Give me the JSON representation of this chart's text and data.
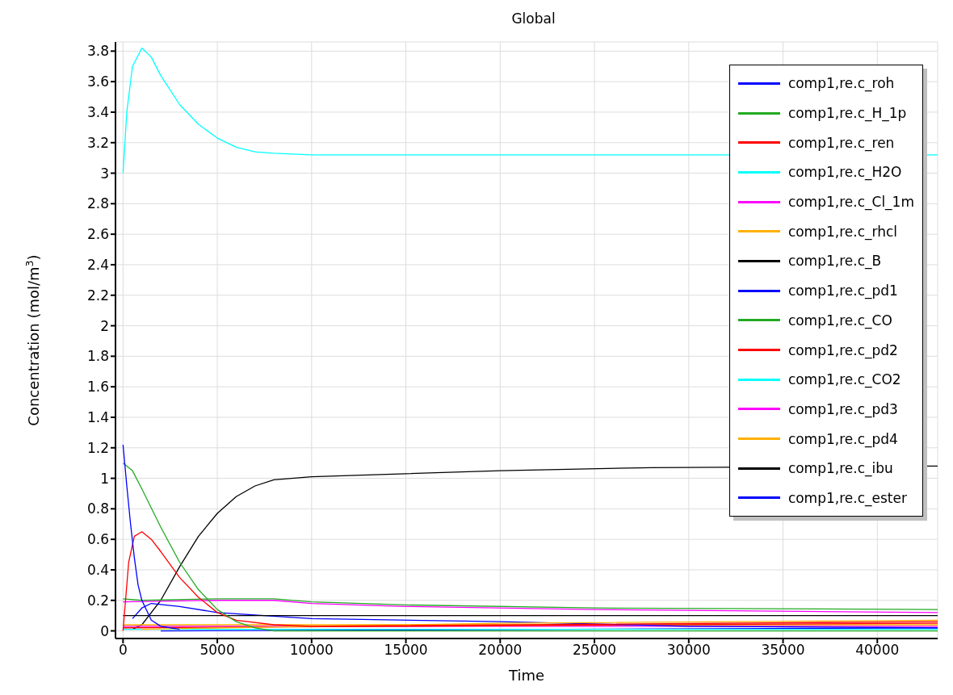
{
  "chart_data": {
    "type": "line",
    "title": "Global",
    "xlabel": "Time",
    "ylabel": "Concentration (mol/m$^{3}$)",
    "xlim": [
      -400,
      43200
    ],
    "xticks": [
      0,
      5000,
      10000,
      15000,
      20000,
      25000,
      30000,
      35000,
      40000
    ],
    "ylim": [
      -0.05,
      3.86
    ],
    "yticks": [
      0,
      0.2,
      0.4,
      0.6,
      0.8,
      1,
      1.2,
      1.4,
      1.6,
      1.8,
      2,
      2.2,
      2.4,
      2.6,
      2.8,
      3,
      3.2,
      3.4,
      3.6,
      3.8
    ],
    "grid": true,
    "legend": "top right",
    "marker": "none",
    "line_style": "solid",
    "series": [
      {
        "name": "comp1,re.c_roh",
        "color": "#0000ff",
        "x": [
          0,
          200,
          400,
          600,
          800,
          1000,
          1500,
          2000,
          3000
        ],
        "values": [
          1.22,
          0.95,
          0.7,
          0.48,
          0.3,
          0.2,
          0.07,
          0.03,
          0.01
        ]
      },
      {
        "name": "comp1,re.c_H_1p",
        "color": "#22aa22",
        "x": [
          0,
          500,
          1000,
          2000,
          3000,
          4000,
          5000,
          6000,
          7000,
          8000,
          43200
        ],
        "values": [
          1.1,
          1.05,
          0.93,
          0.68,
          0.45,
          0.27,
          0.14,
          0.06,
          0.02,
          0,
          0
        ]
      },
      {
        "name": "comp1,re.c_ren",
        "color": "#ff0000",
        "x": [
          0,
          300,
          600,
          1000,
          1500,
          2000,
          3000,
          4000,
          5000,
          6000,
          8000,
          10000,
          43200
        ],
        "values": [
          0,
          0.45,
          0.62,
          0.65,
          0.6,
          0.52,
          0.35,
          0.22,
          0.12,
          0.07,
          0.04,
          0.03,
          0.06
        ]
      },
      {
        "name": "comp1,re.c_H2O",
        "color": "#00ffff",
        "x": [
          0,
          200,
          500,
          1000,
          1500,
          2000,
          3000,
          4000,
          5000,
          6000,
          7000,
          8000,
          10000,
          28000,
          43200
        ],
        "values": [
          3.0,
          3.4,
          3.7,
          3.82,
          3.76,
          3.64,
          3.45,
          3.32,
          3.23,
          3.17,
          3.14,
          3.13,
          3.12,
          3.12,
          3.12
        ]
      },
      {
        "name": "comp1,re.c_Cl_1m",
        "color": "#ff00ff",
        "x": [
          0,
          5000,
          8000,
          10000,
          15000,
          25000,
          43200
        ],
        "values": [
          0.19,
          0.2,
          0.2,
          0.18,
          0.16,
          0.14,
          0.12
        ]
      },
      {
        "name": "comp1,re.c_rhcl",
        "color": "#ffb000",
        "x": [
          1000,
          10000,
          20000,
          43200
        ],
        "values": [
          0.01,
          0.03,
          0.05,
          0.07
        ]
      },
      {
        "name": "comp1,re.c_B",
        "color": "#000000",
        "x": [
          0,
          43200
        ],
        "values": [
          0.1,
          0.1
        ]
      },
      {
        "name": "comp1,re.c_pd1",
        "color": "#0000ff",
        "x": [
          500,
          1000,
          1500,
          3000,
          5000,
          10000,
          20000,
          30000,
          43200
        ],
        "values": [
          0.08,
          0.15,
          0.18,
          0.16,
          0.12,
          0.08,
          0.06,
          0.03,
          0.02
        ]
      },
      {
        "name": "comp1,re.c_CO",
        "color": "#22aa22",
        "x": [
          0,
          1000,
          5000,
          8000,
          10000,
          15000,
          25000,
          43200
        ],
        "values": [
          0.21,
          0.2,
          0.21,
          0.21,
          0.19,
          0.17,
          0.15,
          0.14
        ]
      },
      {
        "name": "comp1,re.c_pd2",
        "color": "#ff0000",
        "x": [
          0,
          43200
        ],
        "values": [
          0.02,
          0.05
        ]
      },
      {
        "name": "comp1,re.c_CO2",
        "color": "#00ffff",
        "x": [
          0,
          43200
        ],
        "values": [
          0.01,
          0.01
        ]
      },
      {
        "name": "comp1,re.c_pd3",
        "color": "#ff00ff",
        "x": [
          0,
          43200
        ],
        "values": [
          0.03,
          0.03
        ]
      },
      {
        "name": "comp1,re.c_pd4",
        "color": "#ffb000",
        "x": [
          0,
          43200
        ],
        "values": [
          0.04,
          0.04
        ]
      },
      {
        "name": "comp1,re.c_ibu",
        "color": "#000000",
        "x": [
          500,
          1000,
          2000,
          3000,
          4000,
          5000,
          6000,
          7000,
          8000,
          10000,
          15000,
          20000,
          28000,
          43200
        ],
        "values": [
          0.01,
          0.04,
          0.2,
          0.42,
          0.62,
          0.77,
          0.88,
          0.95,
          0.99,
          1.01,
          1.03,
          1.05,
          1.07,
          1.08
        ]
      },
      {
        "name": "comp1,re.c_ester",
        "color": "#0000ff",
        "x": [
          2000,
          43200
        ],
        "values": [
          0,
          0.02
        ]
      }
    ]
  }
}
